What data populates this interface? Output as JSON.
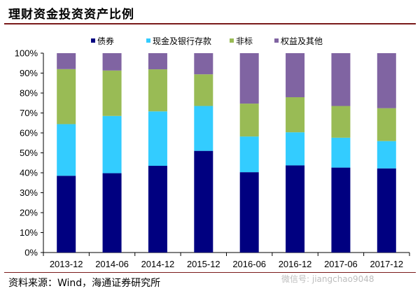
{
  "title": "理财资金投资资产比例",
  "source": "资料来源：Wind，海通证券研究所",
  "watermark": "微信号: jiangchao9048",
  "chart_data": {
    "type": "bar",
    "stacked": true,
    "title": "理财资金投资资产比例",
    "xlabel": "",
    "ylabel": "",
    "ylim": [
      0,
      100
    ],
    "y_tick_format": "percent",
    "y_ticks": [
      "0%",
      "10%",
      "20%",
      "30%",
      "40%",
      "50%",
      "60%",
      "70%",
      "80%",
      "90%",
      "100%"
    ],
    "grid": false,
    "legend_position": "top",
    "categories": [
      "2013-12",
      "2014-06",
      "2014-12",
      "2015-12",
      "2016-06",
      "2016-12",
      "2017-06",
      "2017-12"
    ],
    "series": [
      {
        "name": "债券",
        "color": "#000080",
        "values": [
          38.5,
          39.8,
          43.5,
          51,
          40.3,
          43.7,
          42.6,
          42.2
        ]
      },
      {
        "name": "现金及银行存款",
        "color": "#33ccff",
        "values": [
          25.9,
          28.7,
          27.3,
          22.5,
          17.9,
          16.6,
          15,
          13.7
        ]
      },
      {
        "name": "非标",
        "color": "#99bb55",
        "values": [
          27.6,
          22.8,
          21.1,
          15.9,
          16.5,
          17.6,
          15.9,
          16.5
        ]
      },
      {
        "name": "权益及其他",
        "color": "#8064a2",
        "values": [
          8,
          8.7,
          8.1,
          10.6,
          25.3,
          22.1,
          26.5,
          27.6
        ]
      }
    ]
  }
}
